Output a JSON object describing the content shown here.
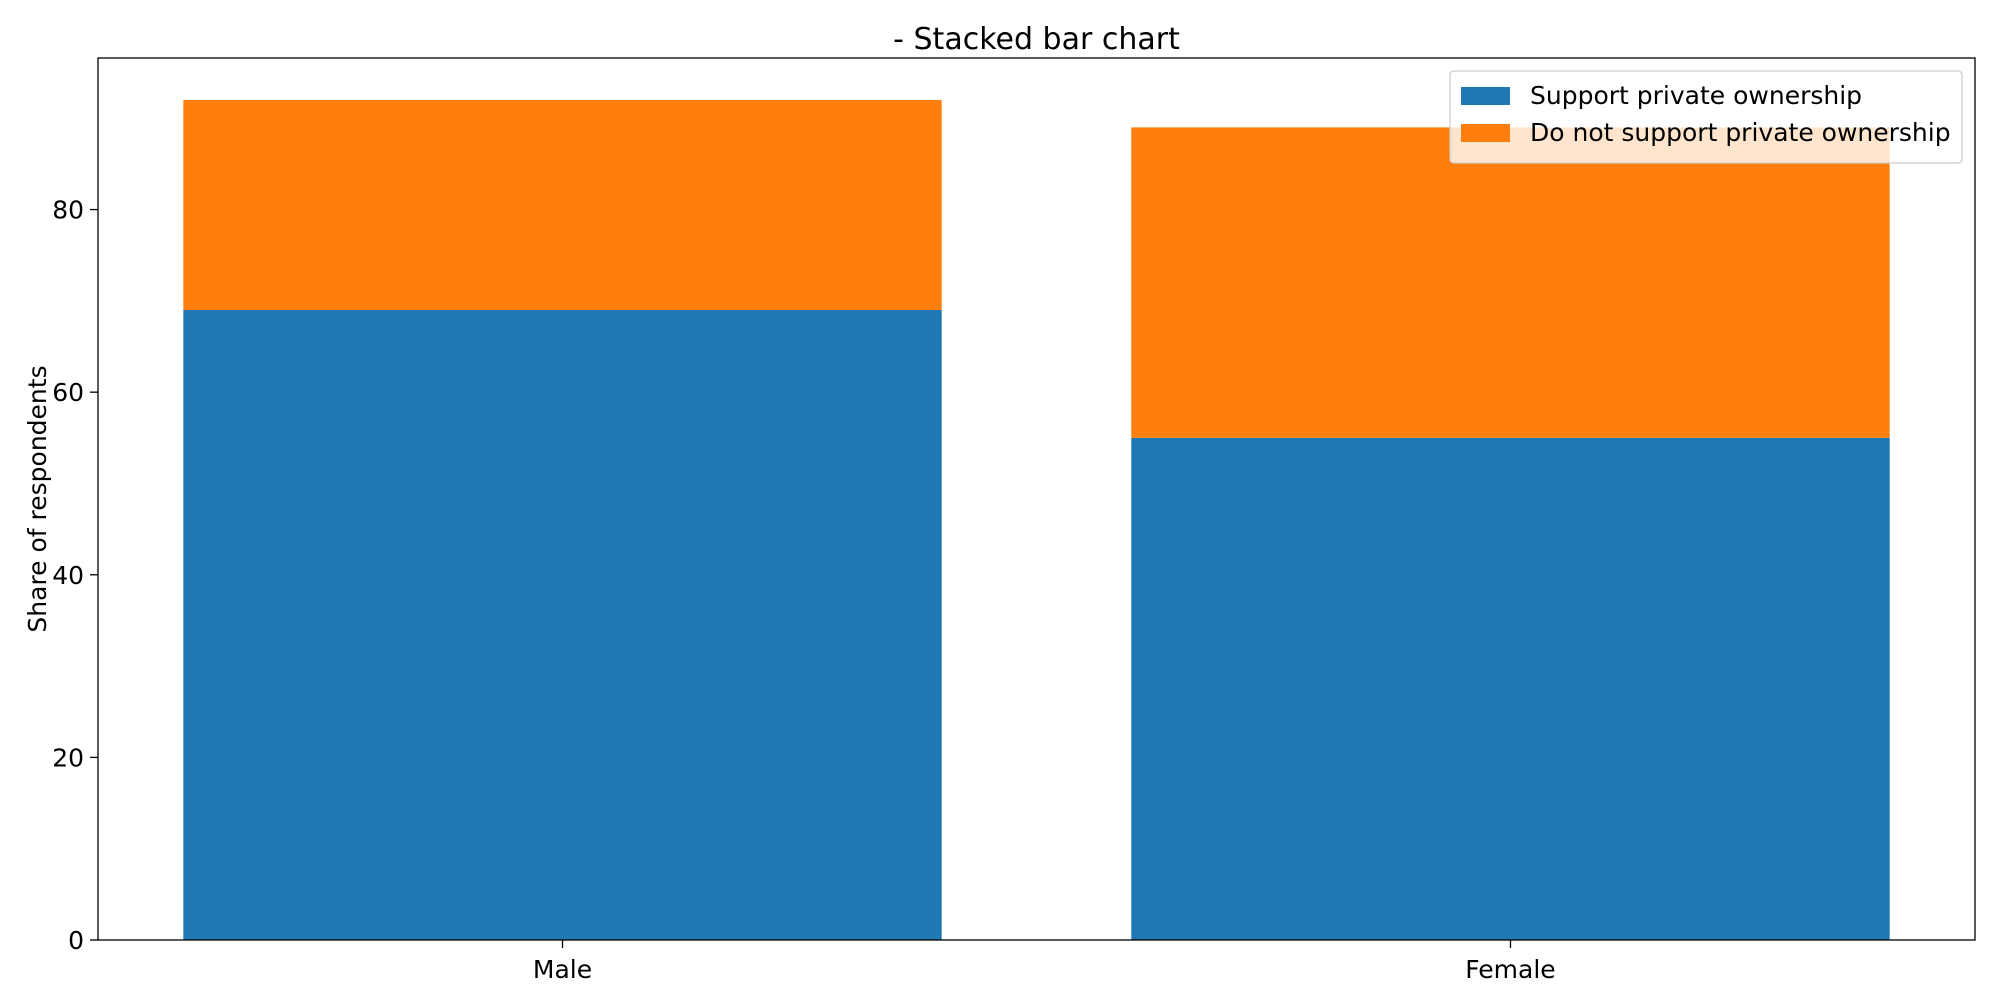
{
  "chart_data": {
    "type": "bar",
    "stacked": true,
    "title": "- Stacked bar chart",
    "xlabel": "",
    "ylabel": "Share of respondents",
    "categories": [
      "Male",
      "Female"
    ],
    "ylim": [
      0,
      96.6
    ],
    "yticks": [
      0,
      20,
      40,
      60,
      80
    ],
    "series": [
      {
        "name": "Support private ownership",
        "color": "#1f77b4",
        "values": [
          69,
          55
        ]
      },
      {
        "name": "Do not support private ownership",
        "color": "#ff7f0e",
        "values": [
          23,
          34
        ]
      }
    ],
    "legend_position": "top-right",
    "grid": false
  }
}
